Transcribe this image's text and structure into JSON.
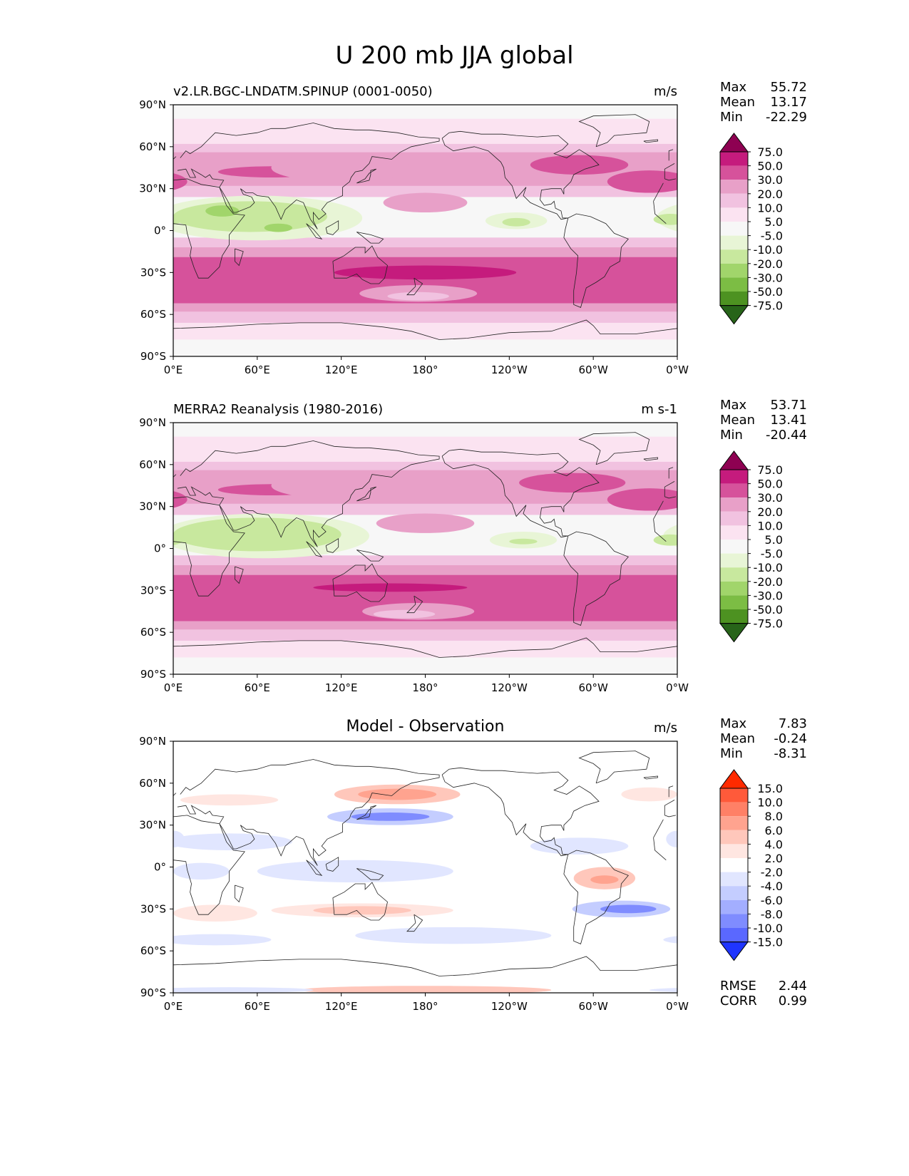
{
  "figure": {
    "title": "U 200 mb JJA global"
  },
  "panels": [
    {
      "id": "test",
      "left_title": "v2.LR.BGC-LNDATM.SPINUP (0001-0050)",
      "center_title": "",
      "units": "m/s",
      "stats": [
        {
          "label": "Max",
          "value": "55.72"
        },
        {
          "label": "Mean",
          "value": "13.17"
        },
        {
          "label": "Min",
          "value": "-22.29"
        }
      ],
      "extra_stats": []
    },
    {
      "id": "ref",
      "left_title": "MERRA2 Reanalysis (1980-2016)",
      "center_title": "",
      "units": "m s-1",
      "stats": [
        {
          "label": "Max",
          "value": "53.71"
        },
        {
          "label": "Mean",
          "value": "13.41"
        },
        {
          "label": "Min",
          "value": "-20.44"
        }
      ],
      "extra_stats": []
    },
    {
      "id": "diff",
      "left_title": "",
      "center_title": "Model - Observation",
      "units": "m/s",
      "stats": [
        {
          "label": "Max",
          "value": "7.83"
        },
        {
          "label": "Mean",
          "value": "-0.24"
        },
        {
          "label": "Min",
          "value": "-8.31"
        }
      ],
      "extra_stats": [
        {
          "label": "RMSE",
          "value": "2.44"
        },
        {
          "label": "CORR",
          "value": "0.99"
        }
      ]
    }
  ],
  "chart_data": [
    {
      "type": "heatmap",
      "subtype": "filled-contour-map",
      "panel": "test",
      "title": "v2.LR.BGC-LNDATM.SPINUP (0001-0050)",
      "units": "m/s",
      "x_ticks": [
        "0°E",
        "60°E",
        "120°E",
        "180°",
        "120°W",
        "60°W",
        "0°W"
      ],
      "y_ticks": [
        "90°N",
        "60°N",
        "30°N",
        "0°",
        "30°S",
        "60°S",
        "90°S"
      ],
      "xlim": [
        0,
        360
      ],
      "ylim": [
        -90,
        90
      ],
      "colorbar": {
        "labels": [
          "75.0",
          "50.0",
          "30.0",
          "20.0",
          "10.0",
          "5.0",
          "-5.0",
          "-10.0",
          "-20.0",
          "-30.0",
          "-50.0",
          "-75.0"
        ],
        "colors": [
          "#8e0152",
          "#c51b7d",
          "#d6529b",
          "#e8a0c8",
          "#f1c2e0",
          "#fbe3f1",
          "#f7f7f7",
          "#e8f5d6",
          "#c8e89e",
          "#a1d56b",
          "#7cbd44",
          "#4d9221",
          "#276419"
        ],
        "extend": "both"
      },
      "features": [
        {
          "name": "southern-hemisphere-jet",
          "lat": -30,
          "lon_range": [
            0,
            360
          ],
          "value": 50,
          "peak": 55.72
        },
        {
          "name": "northern-midlatitude-jet",
          "lat": 42,
          "lon_range": [
            0,
            360
          ],
          "value": 30
        },
        {
          "name": "tropical-easterlies-indian-ocean",
          "lat": 10,
          "lon_range": [
            0,
            110
          ],
          "value": -20
        }
      ]
    },
    {
      "type": "heatmap",
      "subtype": "filled-contour-map",
      "panel": "ref",
      "title": "MERRA2 Reanalysis (1980-2016)",
      "units": "m s-1",
      "x_ticks": [
        "0°E",
        "60°E",
        "120°E",
        "180°",
        "120°W",
        "60°W",
        "0°W"
      ],
      "y_ticks": [
        "90°N",
        "60°N",
        "30°N",
        "0°",
        "30°S",
        "60°S",
        "90°S"
      ],
      "xlim": [
        0,
        360
      ],
      "ylim": [
        -90,
        90
      ],
      "colorbar": {
        "labels": [
          "75.0",
          "50.0",
          "30.0",
          "20.0",
          "10.0",
          "5.0",
          "-5.0",
          "-10.0",
          "-20.0",
          "-30.0",
          "-50.0",
          "-75.0"
        ],
        "colors": [
          "#8e0152",
          "#c51b7d",
          "#d6529b",
          "#e8a0c8",
          "#f1c2e0",
          "#fbe3f1",
          "#f7f7f7",
          "#e8f5d6",
          "#c8e89e",
          "#a1d56b",
          "#7cbd44",
          "#4d9221",
          "#276419"
        ],
        "extend": "both"
      },
      "features": [
        {
          "name": "southern-hemisphere-jet",
          "lat": -30,
          "lon_range": [
            0,
            360
          ],
          "value": 50,
          "peak": 53.71
        },
        {
          "name": "northern-midlatitude-jet",
          "lat": 42,
          "lon_range": [
            0,
            360
          ],
          "value": 30
        },
        {
          "name": "tropical-easterlies-indian-ocean",
          "lat": 10,
          "lon_range": [
            0,
            110
          ],
          "value": -20
        }
      ]
    },
    {
      "type": "heatmap",
      "subtype": "filled-contour-map",
      "panel": "diff",
      "title": "Model - Observation",
      "units": "m/s",
      "x_ticks": [
        "0°E",
        "60°E",
        "120°E",
        "180°",
        "120°W",
        "60°W",
        "0°W"
      ],
      "y_ticks": [
        "90°N",
        "60°N",
        "30°N",
        "0°",
        "30°S",
        "60°S",
        "90°S"
      ],
      "xlim": [
        0,
        360
      ],
      "ylim": [
        -90,
        90
      ],
      "colorbar": {
        "labels": [
          "15.0",
          "10.0",
          "8.0",
          "6.0",
          "4.0",
          "2.0",
          "-2.0",
          "-4.0",
          "-6.0",
          "-8.0",
          "-10.0",
          "-15.0"
        ],
        "colors": [
          "#ff2a00",
          "#ff5a3a",
          "#ff8066",
          "#ffa38f",
          "#ffc7bb",
          "#ffe6e1",
          "#ffffff",
          "#e1e6ff",
          "#c4cdff",
          "#a3aeff",
          "#7f8cff",
          "#5a68ff",
          "#1f35ff"
        ],
        "extend": "both"
      },
      "features": [
        {
          "name": "positive-band-north-pacific",
          "lat": 52,
          "lon_range": [
            130,
            210
          ],
          "value": 6
        },
        {
          "name": "negative-band-east-asia",
          "lat": 37,
          "lon_range": [
            140,
            200
          ],
          "value": -6
        },
        {
          "name": "positive-band-south-america",
          "lat": -8,
          "lon_range": [
            300,
            325
          ],
          "value": 4
        },
        {
          "name": "negative-band-south-atlantic",
          "lat": -30,
          "lon_range": [
            300,
            340
          ],
          "value": -6
        }
      ]
    }
  ]
}
